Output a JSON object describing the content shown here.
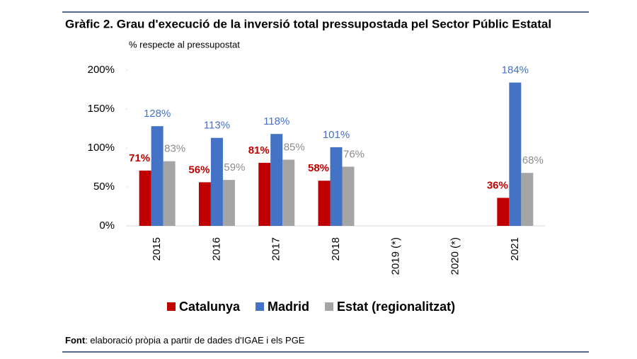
{
  "chart_data": {
    "type": "bar",
    "title": "Gràfic 2. Grau d'execució de la inversió total pressupostada pel Sector Públic Estatal",
    "subtitle": "% respecte al pressupostat",
    "categories": [
      "2015",
      "2016",
      "2017",
      "2018",
      "2019 (*)",
      "2020 (*)",
      "2021"
    ],
    "series": [
      {
        "name": "Catalunya",
        "color": "#c00000",
        "values": [
          71,
          56,
          81,
          58,
          null,
          null,
          36
        ],
        "value_labels": [
          "71%",
          "56%",
          "81%",
          "58%",
          null,
          null,
          "36%"
        ]
      },
      {
        "name": "Madrid",
        "color": "#4472c4",
        "values": [
          128,
          113,
          118,
          101,
          null,
          null,
          184
        ],
        "value_labels": [
          "128%",
          "113%",
          "118%",
          "101%",
          null,
          null,
          "184%"
        ]
      },
      {
        "name": "Estat (regionalitzat)",
        "color": "#a5a5a5",
        "values": [
          83,
          59,
          85,
          76,
          null,
          null,
          68
        ],
        "value_labels": [
          "83%",
          "59%",
          "85%",
          "76%",
          null,
          null,
          "68%"
        ]
      }
    ],
    "ylim": [
      0,
      200
    ],
    "yticks": [
      {
        "value": 0,
        "label": "0%"
      },
      {
        "value": 50,
        "label": "50%"
      },
      {
        "value": 100,
        "label": "100%"
      },
      {
        "value": 150,
        "label": "150%"
      },
      {
        "value": 200,
        "label": "200%"
      }
    ],
    "legend": "bottom",
    "source": {
      "label": "Font",
      "text": ": elaboració pròpia a partir de dades d'IGAE i els PGE"
    }
  }
}
